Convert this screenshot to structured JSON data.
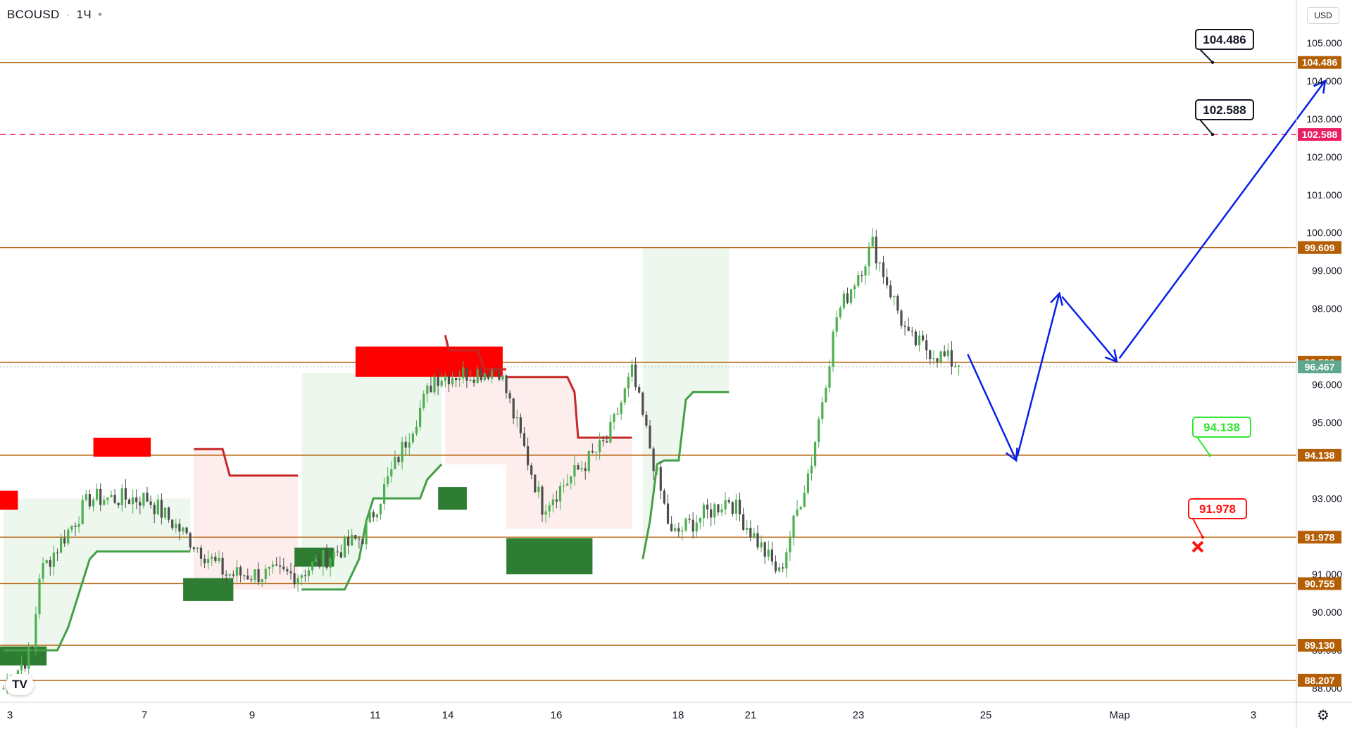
{
  "header": {
    "symbol": "BCOUSD",
    "interval": "1Ч",
    "extra": "•"
  },
  "currency": "USD",
  "logo_text": "TV",
  "icons": {
    "settings": "gear-icon",
    "logo": "tradingview-logo-icon",
    "stop": "red-cross-icon"
  },
  "colors": {
    "level": "#b45f06",
    "dashed": "#e91e63",
    "up_candle": "#4caf50",
    "down_candle": "#4d4d4d",
    "arrow": "#0a1fe8",
    "supply": "#ff0000",
    "demand": "#2e7d32",
    "trail_green": "#43a047",
    "trail_red": "#c62828",
    "bubble_green": "#33e633",
    "bubble_red": "#ff1111",
    "last_price": "#5fa88f"
  },
  "chart_data": {
    "type": "candlestick",
    "y_axis": {
      "min": 88.0,
      "max": 105.8,
      "ticks": [
        "88.000",
        "89.000",
        "90.000",
        "91.000",
        "93.000",
        "95.000",
        "96.000",
        "98.000",
        "99.000",
        "100.000",
        "101.000",
        "102.000",
        "103.000",
        "104.000",
        "105.000"
      ]
    },
    "x_axis": {
      "labels": [
        "3",
        "7",
        "9",
        "11",
        "14",
        "16",
        "18",
        "21",
        "23",
        "25",
        "Мар",
        "3"
      ]
    },
    "levels": [
      {
        "price": 104.486,
        "label": "104.486",
        "style": "solid"
      },
      {
        "price": 102.588,
        "label": "102.588",
        "style": "dashed"
      },
      {
        "price": 99.609,
        "label": "99.609",
        "style": "solid"
      },
      {
        "price": 96.586,
        "label": "96.586",
        "style": "solid"
      },
      {
        "price": 94.138,
        "label": "94.138",
        "style": "solid"
      },
      {
        "price": 91.978,
        "label": "91.978",
        "style": "solid"
      },
      {
        "price": 90.755,
        "label": "90.755",
        "style": "solid"
      },
      {
        "price": 89.13,
        "label": "89.130",
        "style": "solid"
      },
      {
        "price": 88.207,
        "label": "88.207",
        "style": "solid"
      }
    ],
    "last_price": {
      "price": 96.467,
      "label": "96.467"
    },
    "callouts": [
      {
        "label": "104.486",
        "price": 104.486,
        "color": "black"
      },
      {
        "label": "102.588",
        "price": 102.588,
        "color": "black"
      },
      {
        "label": "94.138",
        "price": 94.138,
        "color": "green"
      },
      {
        "label": "91.978",
        "price": 91.978,
        "color": "red"
      }
    ],
    "supply_zones": [
      {
        "top": 93.2,
        "bottom": 92.7
      },
      {
        "top": 94.6,
        "bottom": 94.1
      },
      {
        "top": 97.0,
        "bottom": 96.2
      }
    ],
    "demand_zones": [
      {
        "top": 89.1,
        "bottom": 88.6
      },
      {
        "top": 90.9,
        "bottom": 90.3
      },
      {
        "top": 91.7,
        "bottom": 91.2
      },
      {
        "top": 93.3,
        "bottom": 92.7
      },
      {
        "top": 91.95,
        "bottom": 91.0
      }
    ],
    "path": [
      {
        "x": 0,
        "y": 88.0
      },
      {
        "x": 8,
        "y": 89.0
      },
      {
        "x": 10,
        "y": 91.0
      },
      {
        "x": 24,
        "y": 93.0
      },
      {
        "x": 40,
        "y": 93.0
      },
      {
        "x": 62,
        "y": 91.0
      },
      {
        "x": 82,
        "y": 91.0
      },
      {
        "x": 100,
        "y": 92.0
      },
      {
        "x": 120,
        "y": 96.2
      },
      {
        "x": 138,
        "y": 96.4
      },
      {
        "x": 150,
        "y": 92.8
      },
      {
        "x": 168,
        "y": 94.5
      },
      {
        "x": 175,
        "y": 96.3
      },
      {
        "x": 186,
        "y": 92.0
      },
      {
        "x": 202,
        "y": 93.0
      },
      {
        "x": 216,
        "y": 91.0
      },
      {
        "x": 225,
        "y": 94.0
      },
      {
        "x": 232,
        "y": 97.8
      },
      {
        "x": 242,
        "y": 99.7
      },
      {
        "x": 252,
        "y": 97.2
      },
      {
        "x": 266,
        "y": 96.5
      }
    ],
    "projection": [
      {
        "x": 268,
        "y": 96.9
      },
      {
        "x": 282,
        "y": 94.0
      },
      {
        "x": 294,
        "y": 98.4
      },
      {
        "x": 310,
        "y": 96.6
      },
      {
        "x": 368,
        "y": 104.0
      }
    ]
  }
}
